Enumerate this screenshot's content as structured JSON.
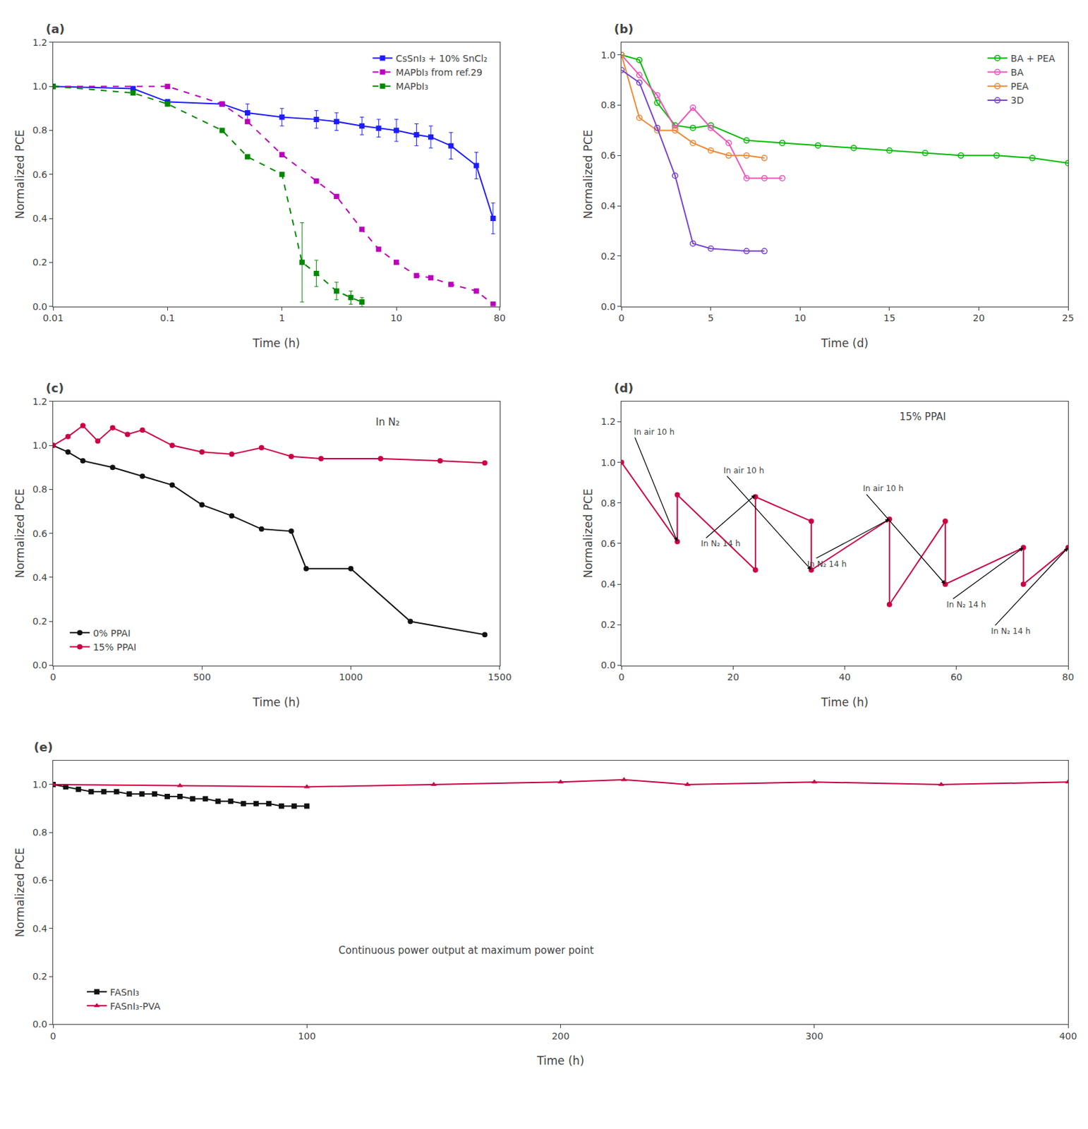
{
  "chart_data": [
    {
      "type": "line",
      "title": "(a)",
      "x_label": "Time (h)",
      "y_label": "Normalized PCE",
      "log": "x",
      "grid": false,
      "legend": "upper right",
      "xlim": [
        0.01,
        80
      ],
      "xticks": [
        0.01,
        0.1,
        1,
        10,
        80
      ],
      "ylim": [
        0.0,
        1.2
      ],
      "yticks": [
        {
          "value": 0.0,
          "label": "0.0"
        },
        0.2,
        0.4,
        0.6,
        0.8,
        {
          "value": 1.0,
          "label": "1.0"
        },
        1.2
      ],
      "series": [
        {
          "name": "CsSnI₃ + 10% SnCl₂",
          "color": "#1c1cff",
          "marker": "square",
          "line_style": "solid",
          "x": [
            0.01,
            0.05,
            0.1,
            0.3,
            0.5,
            1.0,
            2.0,
            3.0,
            5.0,
            7.0,
            10.0,
            15.0,
            20.0,
            30.0,
            50.0,
            70.0
          ],
          "values": [
            1.0,
            0.99,
            0.93,
            0.92,
            0.88,
            0.86,
            0.85,
            0.84,
            0.82,
            0.81,
            0.8,
            0.78,
            0.77,
            0.73,
            0.64,
            0.4
          ],
          "yerr": [
            0.0,
            0.0,
            0.0,
            0.0,
            0.04,
            0.04,
            0.04,
            0.04,
            0.04,
            0.04,
            0.05,
            0.05,
            0.05,
            0.06,
            0.06,
            0.07
          ]
        },
        {
          "name": "MAPbI₃ from ref.29",
          "color": "#bb00bb",
          "marker": "square",
          "line_style": "dash",
          "x": [
            0.01,
            0.1,
            0.3,
            0.5,
            1.0,
            2.0,
            3.0,
            5.0,
            7.0,
            10.0,
            15.0,
            20.0,
            30.0,
            50.0,
            70.0
          ],
          "values": [
            1.0,
            1.0,
            0.92,
            0.84,
            0.69,
            0.57,
            0.5,
            0.35,
            0.26,
            0.2,
            0.14,
            0.13,
            0.1,
            0.07,
            0.01
          ]
        },
        {
          "name": "MAPbI₃",
          "color": "#008800",
          "marker": "square",
          "line_style": "dash",
          "x": [
            0.01,
            0.05,
            0.1,
            0.3,
            0.5,
            1.0,
            1.5,
            2.0,
            3.0,
            4.0,
            5.0
          ],
          "values": [
            1.0,
            0.97,
            0.92,
            0.8,
            0.68,
            0.6,
            0.2,
            0.15,
            0.07,
            0.04,
            0.02
          ],
          "yerr": [
            0.0,
            0.0,
            0.0,
            0.0,
            0.0,
            0.0,
            0.18,
            0.06,
            0.04,
            0.03,
            0.02
          ]
        }
      ]
    },
    {
      "type": "line",
      "title": "(b)",
      "x_label": "Time (d)",
      "y_label": "Normalized PCE",
      "grid": false,
      "legend": "upper right",
      "xlim": [
        0,
        25
      ],
      "xticks": [
        0,
        5,
        10,
        15,
        20,
        25
      ],
      "ylim": [
        0.0,
        1.05
      ],
      "yticks": [
        {
          "value": 0.0,
          "label": "0.0"
        },
        0.2,
        0.4,
        0.6,
        0.8,
        {
          "value": 1.0,
          "label": "1.0"
        }
      ],
      "series": [
        {
          "name": "BA + PEA",
          "color": "#00bb00",
          "marker": "circle-open",
          "line_style": "solid",
          "x": [
            0,
            1,
            2,
            3,
            4,
            5,
            7,
            9,
            11,
            13,
            15,
            17,
            19,
            21,
            23,
            25
          ],
          "values": [
            1.0,
            0.98,
            0.81,
            0.72,
            0.71,
            0.72,
            0.66,
            0.65,
            0.64,
            0.63,
            0.62,
            0.61,
            0.6,
            0.6,
            0.59,
            0.57
          ]
        },
        {
          "name": "BA",
          "color": "#ee55bb",
          "marker": "circle-open",
          "line_style": "solid",
          "x": [
            0,
            1,
            2,
            3,
            4,
            5,
            6,
            7,
            8,
            9
          ],
          "values": [
            1.0,
            0.92,
            0.84,
            0.71,
            0.79,
            0.71,
            0.65,
            0.51,
            0.51,
            0.51
          ]
        },
        {
          "name": "PEA",
          "color": "#ee8833",
          "marker": "circle-open",
          "line_style": "solid",
          "x": [
            0,
            1,
            2,
            3,
            4,
            5,
            6,
            7,
            8
          ],
          "values": [
            1.0,
            0.75,
            0.7,
            0.7,
            0.65,
            0.62,
            0.6,
            0.6,
            0.59
          ]
        },
        {
          "name": "3D",
          "color": "#7744cc",
          "marker": "circle-open",
          "line_style": "solid",
          "x": [
            0,
            1,
            2,
            3,
            4,
            5,
            7,
            8
          ],
          "values": [
            0.94,
            0.89,
            0.71,
            0.52,
            0.25,
            0.23,
            0.22,
            0.22
          ]
        }
      ]
    },
    {
      "type": "line",
      "title": "(c)",
      "x_label": "Time (h)",
      "y_label": "Normalized PCE",
      "grid": false,
      "legend": "lower left",
      "annotations": [
        {
          "text": "In N₂"
        }
      ],
      "xlim": [
        0,
        1500
      ],
      "xticks": [
        0,
        500,
        1000,
        1500
      ],
      "ylim": [
        0.0,
        1.2
      ],
      "yticks": [
        {
          "value": 0.0,
          "label": "0.0"
        },
        0.2,
        0.4,
        0.6,
        0.8,
        {
          "value": 1.0,
          "label": "1.0"
        },
        1.2
      ],
      "series": [
        {
          "name": "0% PPAI",
          "color": "#111111",
          "marker": "circle",
          "line_style": "solid",
          "x": [
            0,
            50,
            100,
            200,
            300,
            400,
            500,
            600,
            700,
            800,
            850,
            1000,
            1200,
            1450
          ],
          "values": [
            1.0,
            0.97,
            0.93,
            0.9,
            0.86,
            0.82,
            0.73,
            0.68,
            0.62,
            0.61,
            0.44,
            0.44,
            0.2,
            0.14
          ]
        },
        {
          "name": "15% PPAI",
          "color": "#cc0044",
          "marker": "circle",
          "line_style": "solid",
          "x": [
            0,
            50,
            100,
            150,
            200,
            250,
            300,
            400,
            500,
            600,
            700,
            800,
            900,
            1100,
            1300,
            1450
          ],
          "values": [
            1.0,
            1.04,
            1.09,
            1.02,
            1.08,
            1.05,
            1.07,
            1.0,
            0.97,
            0.96,
            0.99,
            0.95,
            0.94,
            0.94,
            0.93,
            0.92
          ]
        }
      ]
    },
    {
      "type": "line",
      "title": "(d)",
      "x_label": "Time (h)",
      "y_label": "Normalized PCE",
      "grid": false,
      "annotations": [
        {
          "text": "15% PPAI"
        },
        {
          "text": "In air 10 h",
          "xy": [
            10,
            0.61
          ],
          "xytext": [
            2,
            1.15
          ]
        },
        {
          "text": "In air 10 h",
          "xy": [
            34,
            0.47
          ],
          "xytext": [
            18,
            0.96
          ]
        },
        {
          "text": "In air 10 h",
          "xy": [
            58,
            0.4
          ],
          "xytext": [
            43,
            0.87
          ]
        },
        {
          "text": "In N₂ 14 h",
          "xy": [
            24,
            0.84
          ],
          "xytext": [
            14,
            0.6
          ]
        },
        {
          "text": "In N₂ 14 h",
          "xy": [
            48,
            0.72
          ],
          "xytext": [
            33,
            0.5
          ]
        },
        {
          "text": "In N₂ 14 h",
          "xy": [
            72,
            0.58
          ],
          "xytext": [
            58,
            0.3
          ]
        },
        {
          "text": "In N₂ 14 h",
          "xy": [
            80,
            0.58
          ],
          "xytext": [
            66,
            0.17
          ]
        }
      ],
      "xlim": [
        0,
        80
      ],
      "xticks": [
        0,
        20,
        40,
        60,
        80
      ],
      "ylim": [
        0.0,
        1.3
      ],
      "yticks": [
        {
          "value": 0.0,
          "label": "0.0"
        },
        0.2,
        0.4,
        0.6,
        0.8,
        {
          "value": 1.0,
          "label": "1.0"
        },
        1.2
      ],
      "series": [
        {
          "color": "#cc0044",
          "marker": "circle",
          "line_style": "solid",
          "x": [
            0,
            10,
            10,
            24,
            24,
            34,
            34,
            48,
            48,
            58,
            58,
            72,
            72,
            80
          ],
          "values": [
            1.0,
            0.61,
            0.84,
            0.47,
            0.83,
            0.71,
            0.47,
            0.72,
            0.3,
            0.71,
            0.4,
            0.58,
            0.4,
            0.58
          ]
        }
      ]
    },
    {
      "type": "line",
      "title": "(e)",
      "x_label": "Time (h)",
      "y_label": "Normalized PCE",
      "grid": false,
      "legend": "lower left",
      "annotations": [
        {
          "text": "Continuous power output at maximum power point"
        }
      ],
      "xlim": [
        0,
        400
      ],
      "xticks": [
        0,
        100,
        200,
        300,
        400
      ],
      "ylim": [
        0.0,
        1.1
      ],
      "yticks": [
        {
          "value": 0.0,
          "label": "0.0"
        },
        0.2,
        0.4,
        0.6,
        0.8,
        {
          "value": 1.0,
          "label": "1.0"
        }
      ],
      "series": [
        {
          "name": "FASnI₃",
          "color": "#111111",
          "marker": "square",
          "line_style": "solid",
          "x": [
            0,
            5,
            10,
            15,
            20,
            25,
            30,
            35,
            40,
            45,
            50,
            55,
            60,
            65,
            70,
            75,
            80,
            85,
            90,
            95,
            100
          ],
          "values": [
            1.0,
            0.99,
            0.98,
            0.97,
            0.97,
            0.97,
            0.96,
            0.96,
            0.96,
            0.95,
            0.95,
            0.94,
            0.94,
            0.93,
            0.93,
            0.92,
            0.92,
            0.92,
            0.91,
            0.91,
            0.91
          ]
        },
        {
          "name": "FASnI₃-PVA",
          "color": "#cc0044",
          "marker": "triangle-up",
          "line_style": "solid",
          "x": [
            0,
            50,
            100,
            150,
            200,
            225,
            250,
            300,
            350,
            400
          ],
          "values": [
            1.0,
            0.995,
            0.99,
            1.0,
            1.01,
            1.02,
            1.0,
            1.01,
            1.0,
            1.01
          ]
        }
      ]
    }
  ]
}
